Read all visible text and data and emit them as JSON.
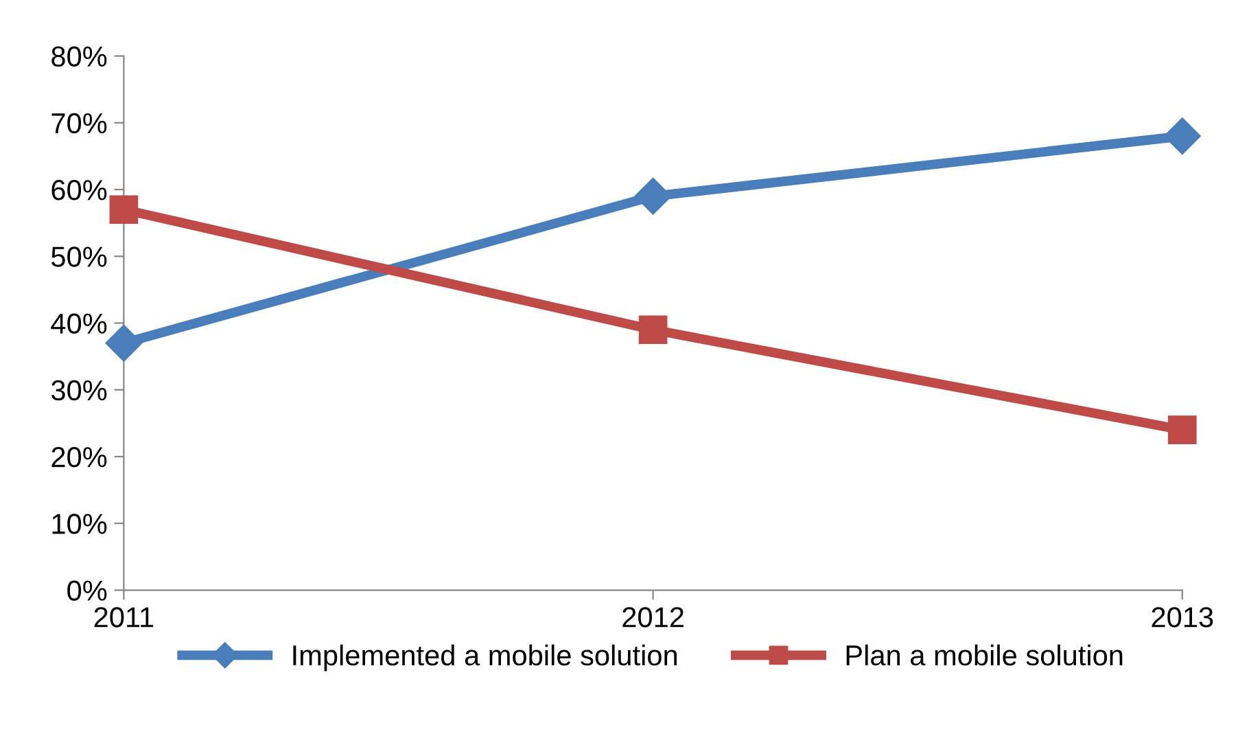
{
  "chart_data": {
    "type": "line",
    "categories": [
      "2011",
      "2012",
      "2013"
    ],
    "series": [
      {
        "name": "Implemented a mobile solution",
        "color": "#4a7ebb",
        "marker": "diamond",
        "values": [
          37,
          59,
          68
        ]
      },
      {
        "name": "Plan a mobile solution",
        "color": "#be4b48",
        "marker": "square",
        "values": [
          57,
          39,
          24
        ]
      }
    ],
    "ylim": [
      0,
      80
    ],
    "yticks": [
      {
        "value": 0,
        "label": "0%"
      },
      {
        "value": 10,
        "label": "10%"
      },
      {
        "value": 20,
        "label": "20%"
      },
      {
        "value": 30,
        "label": "30%"
      },
      {
        "value": 40,
        "label": "40%"
      },
      {
        "value": 50,
        "label": "50%"
      },
      {
        "value": 60,
        "label": "60%"
      },
      {
        "value": 70,
        "label": "70%"
      },
      {
        "value": 80,
        "label": "80%"
      }
    ],
    "grid": false,
    "legend": "bottom",
    "line_style": "solid"
  }
}
